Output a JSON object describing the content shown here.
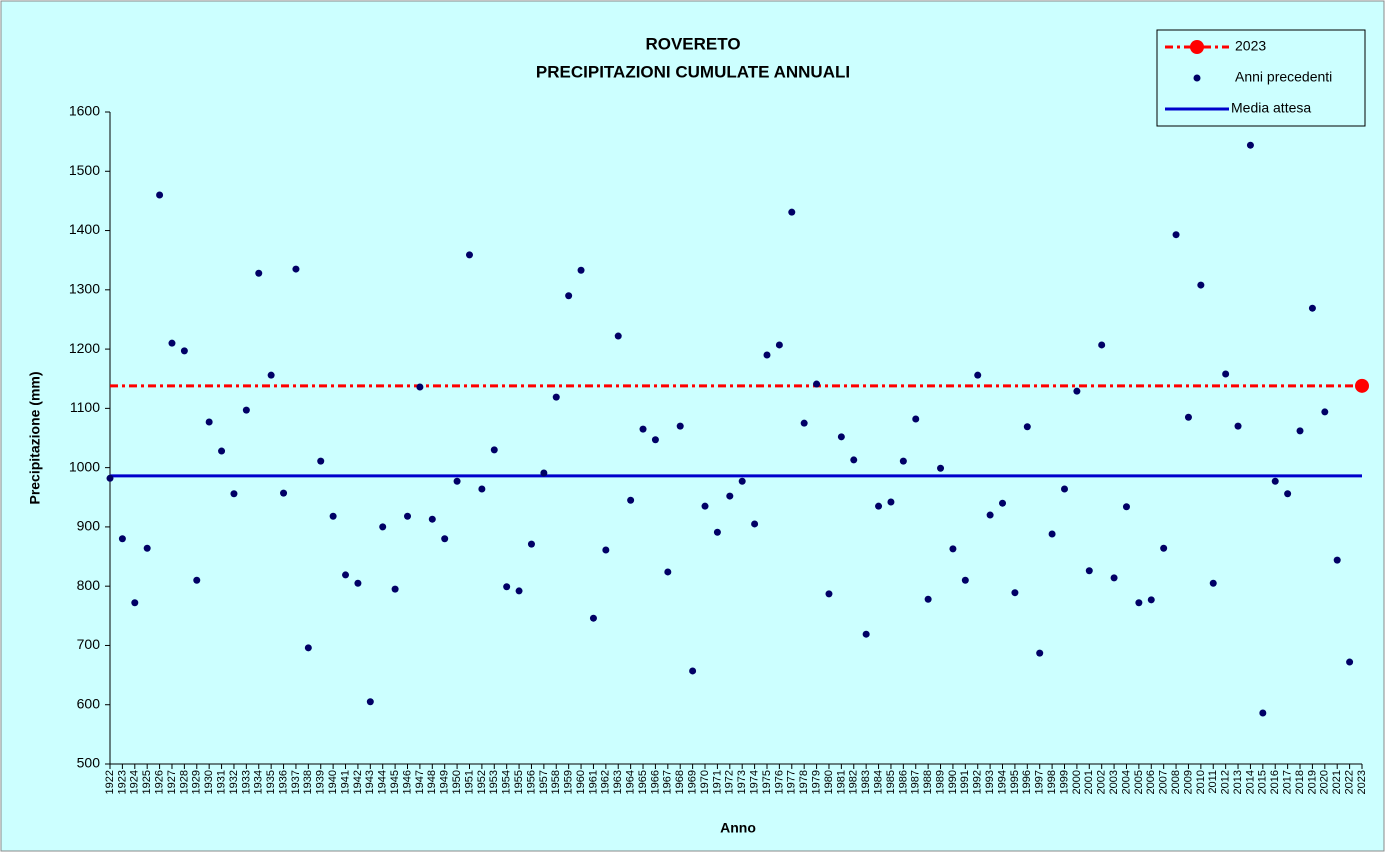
{
  "chart_data": {
    "type": "scatter",
    "title": "ROVERETO",
    "subtitle": "PRECIPITAZIONI CUMULATE ANNUALI",
    "x_label": "Anno",
    "y_label": "Precipitazione (mm)",
    "categories": [
      "1922",
      "1923",
      "1924",
      "1925",
      "1926",
      "1927",
      "1928",
      "1929",
      "1930",
      "1931",
      "1932",
      "1933",
      "1934",
      "1935",
      "1936",
      "1937",
      "1938",
      "1939",
      "1940",
      "1941",
      "1942",
      "1943",
      "1944",
      "1945",
      "1946",
      "1947",
      "1948",
      "1949",
      "1950",
      "1951",
      "1952",
      "1953",
      "1954",
      "1955",
      "1956",
      "1957",
      "1958",
      "1959",
      "1960",
      "1961",
      "1962",
      "1963",
      "1964",
      "1965",
      "1966",
      "1967",
      "1968",
      "1969",
      "1970",
      "1971",
      "1972",
      "1973",
      "1974",
      "1975",
      "1976",
      "1977",
      "1978",
      "1979",
      "1980",
      "1981",
      "1982",
      "1983",
      "1984",
      "1985",
      "1986",
      "1987",
      "1988",
      "1989",
      "1990",
      "1991",
      "1992",
      "1993",
      "1994",
      "1995",
      "1996",
      "1997",
      "1998",
      "1999",
      "2000",
      "2001",
      "2002",
      "2003",
      "2004",
      "2005",
      "2006",
      "2007",
      "2008",
      "2009",
      "2010",
      "2011",
      "2012",
      "2013",
      "2014",
      "2015",
      "2016",
      "2017",
      "2018",
      "2019",
      "2020",
      "2021",
      "2022",
      "2023"
    ],
    "series": [
      {
        "name": "2023",
        "color": "#ff0000",
        "values": [
          null,
          null,
          null,
          null,
          null,
          null,
          null,
          null,
          null,
          null,
          null,
          null,
          null,
          null,
          null,
          null,
          null,
          null,
          null,
          null,
          null,
          null,
          null,
          null,
          null,
          null,
          null,
          null,
          null,
          null,
          null,
          null,
          null,
          null,
          null,
          null,
          null,
          null,
          null,
          null,
          null,
          null,
          null,
          null,
          null,
          null,
          null,
          null,
          null,
          null,
          null,
          null,
          null,
          null,
          null,
          null,
          null,
          null,
          null,
          null,
          null,
          null,
          null,
          null,
          null,
          null,
          null,
          null,
          null,
          null,
          null,
          null,
          null,
          null,
          null,
          null,
          null,
          null,
          null,
          null,
          null,
          null,
          null,
          null,
          null,
          null,
          null,
          null,
          null,
          null,
          null,
          null,
          null,
          null,
          null,
          null,
          null,
          null,
          null,
          null,
          null,
          1138
        ]
      },
      {
        "name": "Anni precedenti",
        "color": "#000066",
        "values": [
          982,
          880,
          772,
          864,
          1460,
          1210,
          1197,
          810,
          1077,
          1028,
          956,
          1097,
          1328,
          1156,
          957,
          1335,
          696,
          1011,
          918,
          819,
          805,
          605,
          900,
          795,
          918,
          1136,
          913,
          880,
          977,
          1359,
          964,
          1030,
          799,
          792,
          871,
          991,
          1119,
          1290,
          1333,
          746,
          861,
          1222,
          945,
          1065,
          1047,
          824,
          1070,
          657,
          935,
          891,
          952,
          977,
          905,
          1190,
          1207,
          1431,
          1075,
          1141,
          787,
          1052,
          1013,
          719,
          935,
          942,
          1011,
          1082,
          778,
          999,
          863,
          810,
          1156,
          920,
          940,
          789,
          1069,
          687,
          888,
          964,
          1129,
          826,
          1207,
          814,
          934,
          772,
          777,
          864,
          1393,
          1085,
          1308,
          805,
          1158,
          1070,
          1544,
          586,
          977,
          956,
          1062,
          1269,
          1094,
          844,
          672,
          null
        ]
      },
      {
        "name": "Media attesa",
        "color": "#0000cc",
        "values": [
          986
        ]
      }
    ],
    "ylim": [
      500,
      1600
    ],
    "yticks": [
      500,
      600,
      700,
      800,
      900,
      1000,
      1100,
      1200,
      1300,
      1400,
      1500,
      1600
    ],
    "grid": false,
    "legend": "top-right"
  }
}
